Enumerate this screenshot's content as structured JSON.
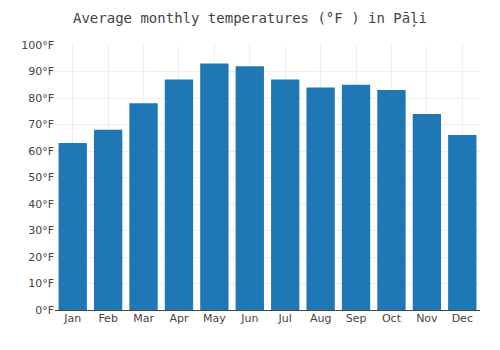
{
  "chart_data": {
    "type": "bar",
    "title": "Average monthly temperatures (°F ) in Pāļi",
    "categories": [
      "Jan",
      "Feb",
      "Mar",
      "Apr",
      "May",
      "Jun",
      "Jul",
      "Aug",
      "Sep",
      "Oct",
      "Nov",
      "Dec"
    ],
    "values": [
      63,
      68,
      78,
      87,
      93,
      92,
      87,
      84,
      85,
      83,
      74,
      66
    ],
    "ylim": [
      0,
      100
    ],
    "yticks": [
      {
        "value": 0,
        "label": "0°F"
      },
      {
        "value": 10,
        "label": "10°F"
      },
      {
        "value": 20,
        "label": "20°F"
      },
      {
        "value": 30,
        "label": "30°F"
      },
      {
        "value": 40,
        "label": "40°F"
      },
      {
        "value": 50,
        "label": "50°F"
      },
      {
        "value": 60,
        "label": "60°F"
      },
      {
        "value": 70,
        "label": "70°F"
      },
      {
        "value": 80,
        "label": "80°F"
      },
      {
        "value": 90,
        "label": "90°F"
      },
      {
        "value": 100,
        "label": "100°F"
      }
    ],
    "grid": true
  }
}
